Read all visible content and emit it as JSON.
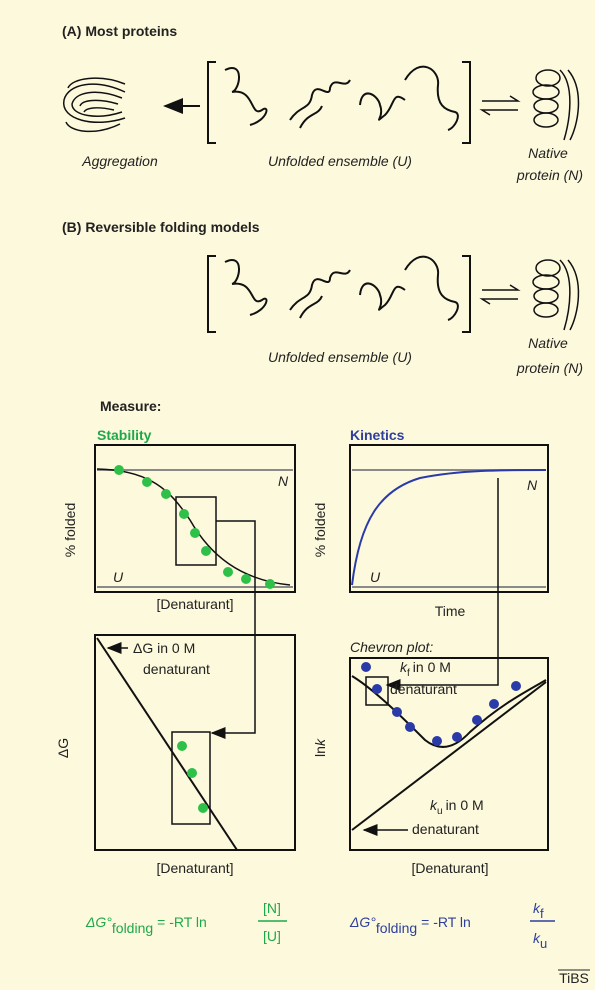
{
  "panel_a": {
    "title": "(A)  Most proteins",
    "aggregation": "Aggregation",
    "unfolded": "Unfolded ensemble (U)",
    "native_line1": "Native",
    "native_line2": "protein (N)"
  },
  "panel_b": {
    "title": "(B)  Reversible folding models",
    "unfolded": "Unfolded ensemble (U)",
    "native_line1": "Native",
    "native_line2": "protein (N)"
  },
  "measure": {
    "title": "Measure:",
    "stability": {
      "title": "Stability",
      "top_plot": {
        "y_label": "% folded",
        "x_label": "[Denaturant]",
        "native": "N",
        "unfolded": "U"
      },
      "bottom_plot": {
        "y_label": "ΔG",
        "x_label": "[Denaturant]",
        "annotation_line1": "ΔG in 0 M",
        "annotation_line2": "denaturant"
      },
      "equation": {
        "lhs": "ΔG°",
        "subscript": "folding",
        "rhs": "= -RT ln",
        "numerator": "[N]",
        "denominator": "[U]"
      }
    },
    "kinetics": {
      "title": "Kinetics",
      "top_plot": {
        "y_label": "% folded",
        "x_label": "Time",
        "native": "N",
        "unfolded": "U"
      },
      "bottom_plot": {
        "title": "Chevron plot:",
        "y_label_main": "ln",
        "y_label_italic": "k",
        "x_label": "[Denaturant]",
        "kf_symbol": "k",
        "kf_subscript": "f",
        "kf_line1": "in 0 M",
        "kf_line2": "denaturant",
        "ku_symbol": "k",
        "ku_subscript": "u",
        "ku_line1": "in 0 M",
        "ku_line2": "denaturant"
      },
      "equation": {
        "lhs": "ΔG°",
        "subscript": "folding",
        "rhs": "= -RT ln",
        "numerator_symbol": "k",
        "numerator_subscript": "f",
        "denominator_symbol": "k",
        "denominator_subscript": "u"
      }
    }
  },
  "footer": {
    "source": "TiBS"
  }
}
